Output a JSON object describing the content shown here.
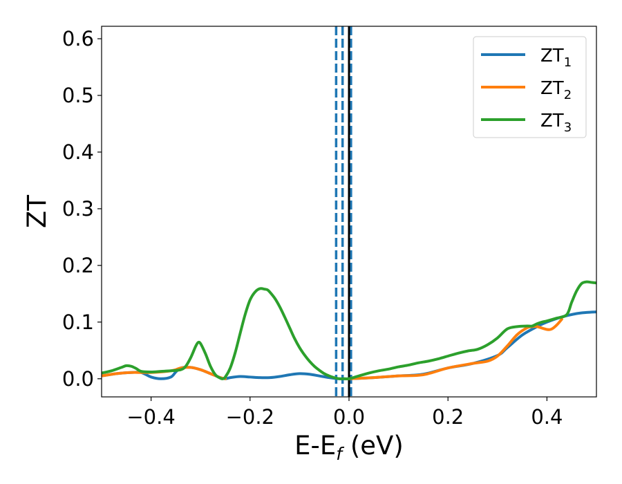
{
  "chart_data": {
    "type": "line",
    "title": "",
    "xlabel": {
      "main": "E-E",
      "sub": "f",
      "rest": " (eV)"
    },
    "ylabel": "ZT",
    "xlim": [
      -0.5,
      0.5
    ],
    "ylim": [
      -0.032,
      0.622
    ],
    "x_ticks": [
      -0.4,
      -0.2,
      0.0,
      0.2,
      0.4
    ],
    "x_tick_labels": [
      "−0.4",
      "−0.2",
      "0.0",
      "0.2",
      "0.4"
    ],
    "y_ticks": [
      0.0,
      0.1,
      0.2,
      0.3,
      0.4,
      0.5,
      0.6
    ],
    "y_tick_labels": [
      "0.0",
      "0.1",
      "0.2",
      "0.3",
      "0.4",
      "0.5",
      "0.6"
    ],
    "grid": false,
    "legend_position": "top-right",
    "series": [
      {
        "name": "ZT",
        "name_sub": "1",
        "color": "#1f77b4",
        "x": [
          -0.5,
          -0.47,
          -0.44,
          -0.42,
          -0.4,
          -0.38,
          -0.36,
          -0.35,
          -0.34,
          -0.32,
          -0.3,
          -0.28,
          -0.26,
          -0.25,
          -0.24,
          -0.22,
          -0.2,
          -0.18,
          -0.16,
          -0.14,
          -0.12,
          -0.1,
          -0.08,
          -0.06,
          -0.04,
          -0.02,
          0.0,
          0.05,
          0.1,
          0.15,
          0.2,
          0.25,
          0.3,
          0.32,
          0.35,
          0.38,
          0.4,
          0.43,
          0.46,
          0.48,
          0.5
        ],
        "y": [
          0.005,
          0.009,
          0.011,
          0.011,
          0.003,
          0.0,
          0.003,
          0.012,
          0.019,
          0.02,
          0.016,
          0.009,
          0.002,
          0.0,
          0.002,
          0.004,
          0.003,
          0.002,
          0.002,
          0.004,
          0.007,
          0.009,
          0.008,
          0.005,
          0.002,
          0.0,
          0.0,
          0.002,
          0.005,
          0.008,
          0.019,
          0.027,
          0.041,
          0.055,
          0.077,
          0.092,
          0.1,
          0.109,
          0.115,
          0.117,
          0.118
        ]
      },
      {
        "name": "ZT",
        "name_sub": "2",
        "color": "#ff7f0e",
        "x": [
          -0.5,
          -0.47,
          -0.44,
          -0.42,
          -0.4,
          -0.38,
          -0.36,
          -0.35,
          -0.34,
          -0.32,
          -0.3,
          -0.28,
          -0.26,
          -0.25,
          0.0,
          0.05,
          0.1,
          0.15,
          0.2,
          0.25,
          0.28,
          0.3,
          0.32,
          0.34,
          0.36,
          0.37,
          0.38,
          0.4,
          0.41,
          0.42,
          0.43
        ],
        "y": [
          0.005,
          0.009,
          0.011,
          0.011,
          0.011,
          0.012,
          0.014,
          0.016,
          0.019,
          0.02,
          0.016,
          0.009,
          0.002,
          0.0,
          0.0,
          0.002,
          0.005,
          0.007,
          0.019,
          0.027,
          0.031,
          0.04,
          0.058,
          0.078,
          0.09,
          0.092,
          0.092,
          0.087,
          0.088,
          0.095,
          0.105
        ]
      },
      {
        "name": "ZT",
        "name_sub": "3",
        "color": "#2ca02c",
        "x": [
          -0.5,
          -0.48,
          -0.46,
          -0.45,
          -0.44,
          -0.43,
          -0.42,
          -0.4,
          -0.38,
          -0.36,
          -0.34,
          -0.33,
          -0.32,
          -0.31,
          -0.305,
          -0.3,
          -0.29,
          -0.28,
          -0.27,
          -0.26,
          -0.255,
          -0.25,
          -0.24,
          -0.23,
          -0.22,
          -0.21,
          -0.2,
          -0.19,
          -0.18,
          -0.17,
          -0.165,
          -0.16,
          -0.15,
          -0.14,
          -0.13,
          -0.12,
          -0.11,
          -0.1,
          -0.09,
          -0.08,
          -0.07,
          -0.06,
          -0.05,
          -0.04,
          -0.03,
          -0.02,
          -0.01,
          0.0,
          0.02,
          0.04,
          0.06,
          0.08,
          0.1,
          0.12,
          0.14,
          0.16,
          0.18,
          0.2,
          0.22,
          0.24,
          0.26,
          0.28,
          0.3,
          0.32,
          0.34,
          0.36,
          0.37,
          0.38,
          0.39,
          0.4,
          0.42,
          0.44,
          0.45,
          0.46,
          0.47,
          0.48,
          0.49,
          0.5
        ],
        "y": [
          0.01,
          0.014,
          0.02,
          0.023,
          0.022,
          0.018,
          0.013,
          0.012,
          0.013,
          0.014,
          0.016,
          0.022,
          0.037,
          0.057,
          0.064,
          0.062,
          0.044,
          0.022,
          0.007,
          0.001,
          0.0,
          0.003,
          0.019,
          0.046,
          0.08,
          0.113,
          0.139,
          0.153,
          0.159,
          0.158,
          0.157,
          0.153,
          0.142,
          0.127,
          0.109,
          0.09,
          0.071,
          0.055,
          0.042,
          0.031,
          0.022,
          0.015,
          0.009,
          0.005,
          0.002,
          0.0,
          0.0,
          0.0,
          0.005,
          0.01,
          0.014,
          0.017,
          0.021,
          0.024,
          0.028,
          0.031,
          0.035,
          0.04,
          0.045,
          0.049,
          0.052,
          0.06,
          0.072,
          0.088,
          0.092,
          0.093,
          0.093,
          0.097,
          0.1,
          0.102,
          0.107,
          0.113,
          0.135,
          0.155,
          0.168,
          0.171,
          0.17,
          0.169
        ]
      }
    ],
    "vlines": [
      {
        "x": -0.026,
        "color": "#1f77b4",
        "style": "dashed"
      },
      {
        "x": -0.013,
        "color": "#1f77b4",
        "style": "dashed"
      },
      {
        "x": 0.004,
        "color": "#1f77b4",
        "style": "dashed"
      },
      {
        "x": 0.0,
        "color": "#000000",
        "style": "solid"
      }
    ]
  }
}
